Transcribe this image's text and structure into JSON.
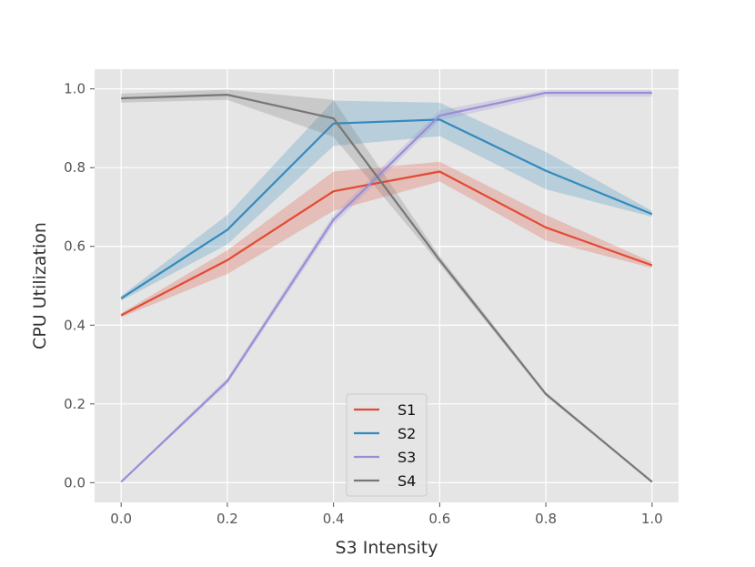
{
  "chart_data": {
    "type": "line",
    "xlabel": "S3 Intensity",
    "ylabel": "CPU Utilization",
    "xlim": [
      -0.05,
      1.05
    ],
    "ylim": [
      -0.05,
      1.05
    ],
    "x_ticks": [
      "0.0",
      "0.2",
      "0.4",
      "0.6",
      "0.8",
      "1.0"
    ],
    "x_tick_values": [
      0.0,
      0.2,
      0.4,
      0.6,
      0.8,
      1.0
    ],
    "y_ticks": [
      "0.0",
      "0.2",
      "0.4",
      "0.6",
      "0.8",
      "1.0"
    ],
    "y_tick_values": [
      0.0,
      0.2,
      0.4,
      0.6,
      0.8,
      1.0
    ],
    "grid": true,
    "legend_position": "bottom-center",
    "background": "#e5e5e5",
    "x": [
      0.0,
      0.2,
      0.4,
      0.6,
      0.8,
      1.0
    ],
    "series": [
      {
        "name": "S1",
        "color": "#e24a33",
        "values": [
          0.425,
          0.565,
          0.74,
          0.79,
          0.648,
          0.552
        ],
        "lower": [
          0.42,
          0.53,
          0.69,
          0.765,
          0.615,
          0.545
        ],
        "upper": [
          0.43,
          0.59,
          0.79,
          0.815,
          0.68,
          0.56
        ]
      },
      {
        "name": "S2",
        "color": "#348abd",
        "values": [
          0.468,
          0.642,
          0.912,
          0.922,
          0.792,
          0.682
        ],
        "lower": [
          0.462,
          0.605,
          0.855,
          0.88,
          0.745,
          0.675
        ],
        "upper": [
          0.474,
          0.68,
          0.97,
          0.965,
          0.84,
          0.69
        ]
      },
      {
        "name": "S3",
        "color": "#988ed5",
        "values": [
          0.002,
          0.258,
          0.668,
          0.932,
          0.99,
          0.99
        ],
        "lower": [
          0.0,
          0.25,
          0.655,
          0.92,
          0.98,
          0.98
        ],
        "upper": [
          0.004,
          0.266,
          0.68,
          0.945,
          0.997,
          0.997
        ]
      },
      {
        "name": "S4",
        "color": "#777777",
        "values": [
          0.976,
          0.985,
          0.925,
          0.565,
          0.225,
          0.002
        ],
        "lower": [
          0.965,
          0.972,
          0.878,
          0.555,
          0.22,
          0.0
        ],
        "upper": [
          0.988,
          0.998,
          0.972,
          0.575,
          0.23,
          0.004
        ]
      }
    ]
  }
}
